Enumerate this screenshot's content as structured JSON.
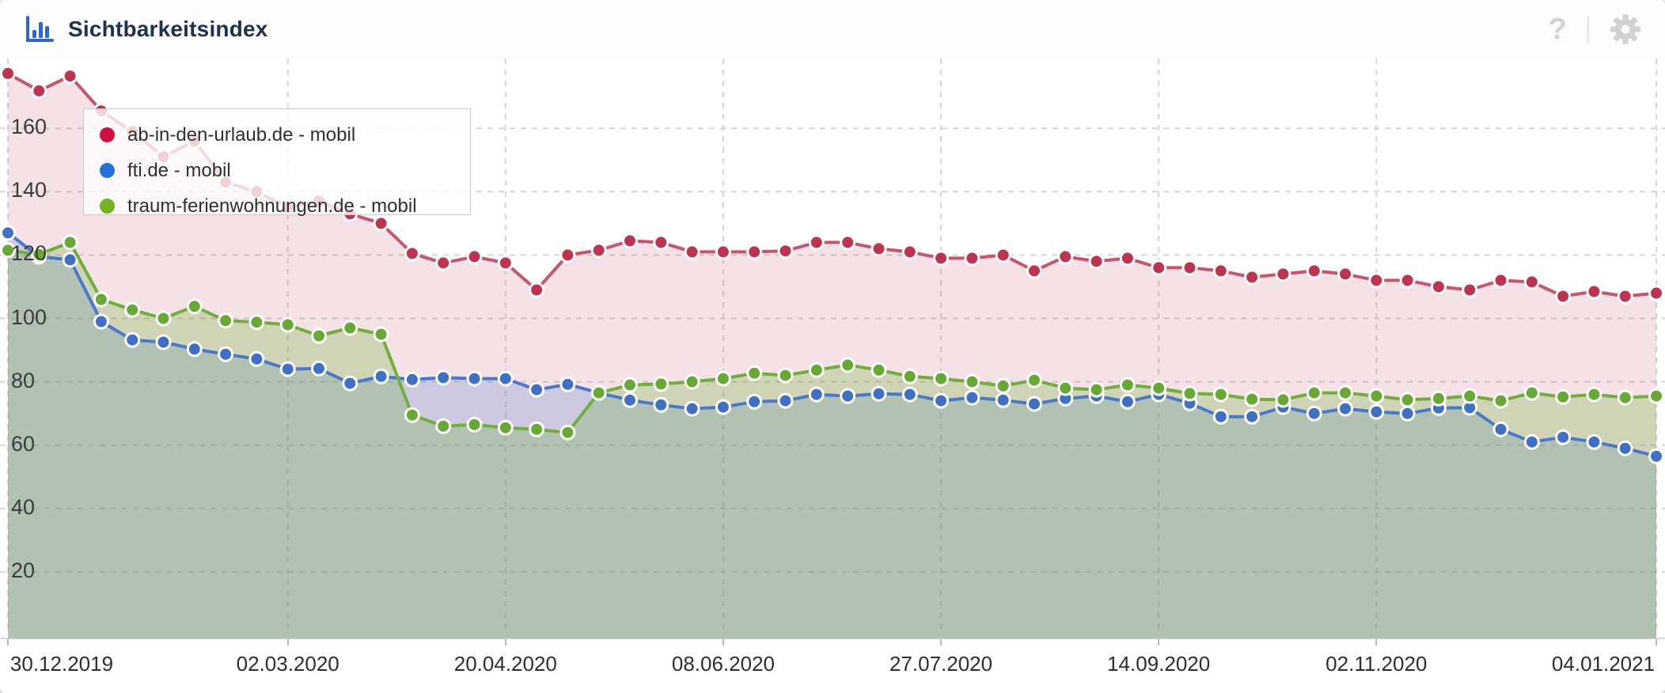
{
  "header": {
    "title": "Sichtbarkeitsindex",
    "help_label": "?",
    "icon_color": "#2b67da",
    "muted_icon_color": "#d2d2d2"
  },
  "chart_data": {
    "type": "area",
    "title": "Sichtbarkeitsindex",
    "x_unit": "week",
    "grid": "dashed",
    "legend_position": "top-left",
    "ylim": [
      0,
      183
    ],
    "y_ticks": [
      160,
      140,
      120,
      100,
      80,
      60,
      40,
      20
    ],
    "x_ticks": [
      {
        "label": "30.12.2019",
        "week": 0
      },
      {
        "label": "02.03.2020",
        "week": 9
      },
      {
        "label": "20.04.2020",
        "week": 16
      },
      {
        "label": "08.06.2020",
        "week": 23
      },
      {
        "label": "27.07.2020",
        "week": 30
      },
      {
        "label": "14.09.2020",
        "week": 37
      },
      {
        "label": "02.11.2020",
        "week": 44
      },
      {
        "label": "04.01.2021",
        "week": 53
      }
    ],
    "series": [
      {
        "name": "ab-in-den-urlaub.de - mobil",
        "color": "#cf0f3e",
        "line_color": "#c5566b",
        "dot_color": "#bc3450",
        "fill": "rgba(197,85,105,0.17)",
        "values": [
          177.3,
          171.8,
          176.5,
          165.5,
          159,
          151,
          156,
          143,
          140,
          135,
          137,
          133,
          130,
          120.5,
          117.5,
          119.5,
          117.5,
          109,
          120,
          121.5,
          124.5,
          124,
          121,
          121,
          121,
          121.3,
          124,
          124,
          122,
          121,
          119,
          119,
          120,
          115,
          119.5,
          118,
          119,
          116,
          116,
          115,
          113,
          114,
          115,
          114,
          112,
          112,
          110,
          109,
          112,
          111.5,
          107,
          108.5,
          107,
          108
        ]
      },
      {
        "name": "fti.de - mobil",
        "color": "#2070dd",
        "line_color": "#4a79cc",
        "dot_color": "#3f70c4",
        "fill": "rgba(74,121,204,0.24)",
        "values": [
          127,
          119.5,
          118.5,
          99,
          93.2,
          92.5,
          90.3,
          88.7,
          87.2,
          84,
          84.2,
          79.5,
          81.7,
          80.7,
          81.3,
          81,
          81,
          77.5,
          79.2,
          76.5,
          74.2,
          72.7,
          71.5,
          72,
          73.7,
          74,
          76,
          75.5,
          76.2,
          76,
          74,
          75,
          74.2,
          73,
          74.7,
          75.5,
          73.7,
          76,
          73.2,
          69,
          69,
          72,
          70,
          71.5,
          70.5,
          70,
          71.7,
          71.8,
          65,
          61,
          62.5,
          61,
          59,
          56.5
        ]
      },
      {
        "name": "traum-ferienwohnungen.de - mobil",
        "color": "#74b223",
        "line_color": "#70af3c",
        "dot_color": "#68a936",
        "fill": "rgba(112,175,60,0.28)",
        "values": [
          121.5,
          120.2,
          124,
          106,
          102.7,
          100,
          103.8,
          99.3,
          98.8,
          98,
          94.5,
          97,
          95,
          69.5,
          66,
          66.5,
          65.5,
          65,
          64,
          76.5,
          79,
          79.3,
          80,
          81,
          82.7,
          82,
          83.7,
          85.3,
          83.7,
          81.7,
          81,
          80,
          78.7,
          80.5,
          78,
          77.5,
          79,
          78,
          76.3,
          76,
          74.5,
          74.3,
          76.5,
          76.5,
          75.5,
          74.3,
          74.7,
          75.5,
          74,
          76.5,
          75.2,
          76,
          75,
          75.5
        ]
      }
    ]
  }
}
